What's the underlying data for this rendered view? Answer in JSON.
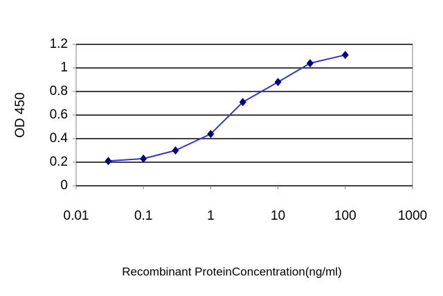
{
  "chart_data": {
    "type": "line",
    "x_label": "Recombinant ProteinConcentration(ng/ml)",
    "y_label": "OD 450",
    "x": [
      0.03,
      0.1,
      0.3,
      1,
      3,
      10,
      30,
      100
    ],
    "values": [
      0.21,
      0.23,
      0.3,
      0.44,
      0.71,
      0.88,
      1.04,
      1.11
    ],
    "color": "#3333cc",
    "marker_color": "#000080",
    "xscale": "log",
    "xlim": [
      0.01,
      1000
    ],
    "xticks": [
      0.01,
      0.1,
      1,
      10,
      100,
      1000
    ],
    "ylim": [
      0,
      1.2
    ],
    "yticks": [
      0,
      0.2,
      0.4,
      0.6,
      0.8,
      1,
      1.2
    ],
    "grid": true
  }
}
